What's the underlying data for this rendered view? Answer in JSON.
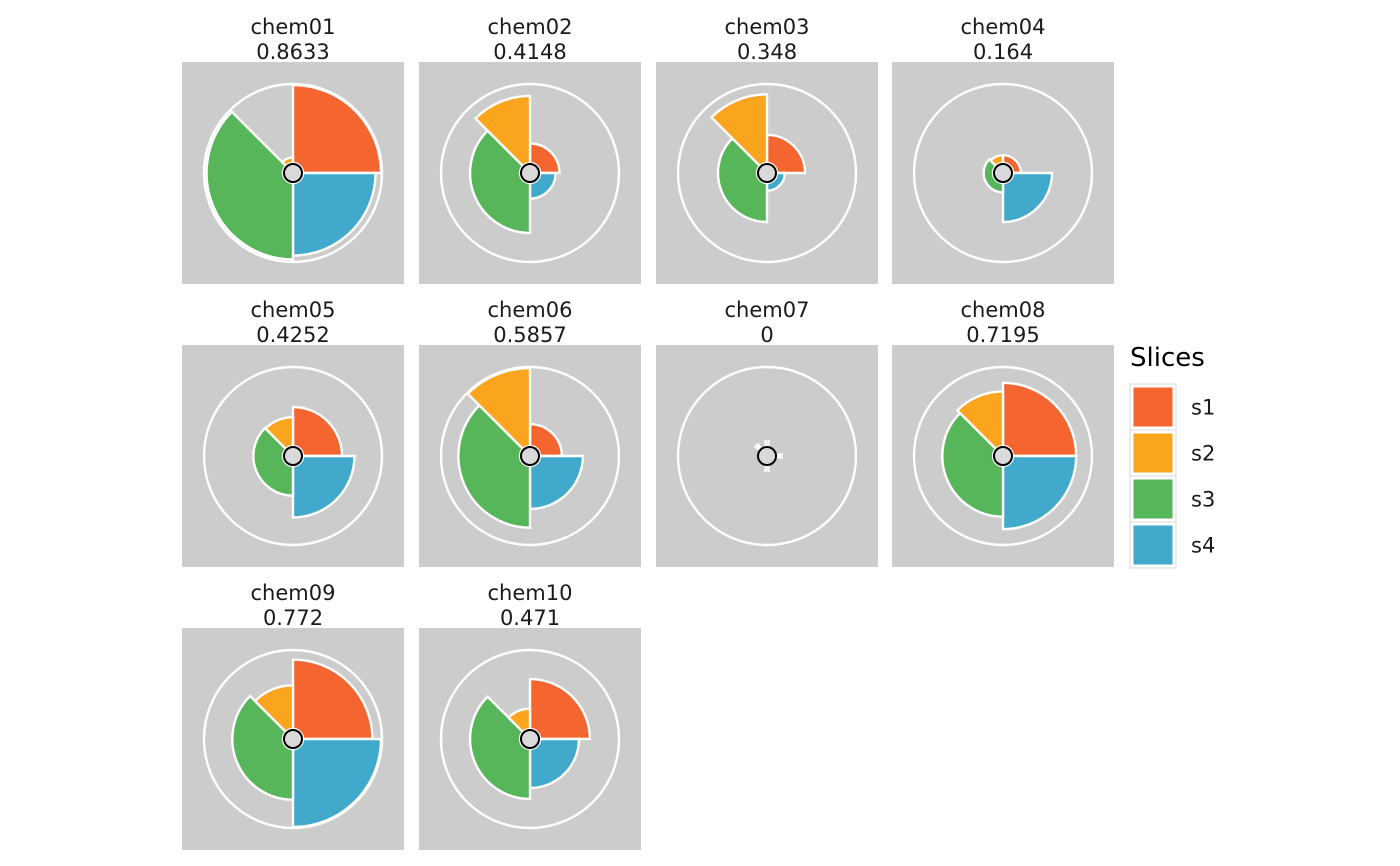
{
  "chart_data": {
    "type": "pie",
    "subtype": "toxpi-facets",
    "slice_names": [
      "s1",
      "s2",
      "s3",
      "s4"
    ],
    "colors": {
      "s1": "#F46530",
      "s2": "#FBA51F",
      "s3": "#57B65A",
      "s4": "#41A9CB",
      "panel_background": "#CCCCCC",
      "ring": "#FFFFFF",
      "center_dot": "#D9D9D9"
    },
    "legend": {
      "title": "Slices",
      "entries": [
        "s1",
        "s2",
        "s3",
        "s4"
      ],
      "placement": "right"
    },
    "panels": [
      {
        "name": "chem01",
        "score": "0.8633",
        "values": {
          "s1": 1.0,
          "s2": 0.07,
          "s3": 0.98,
          "s4": 0.93
        }
      },
      {
        "name": "chem02",
        "score": "0.4148",
        "values": {
          "s1": 0.25,
          "s2": 0.86,
          "s3": 0.64,
          "s4": 0.2
        }
      },
      {
        "name": "chem03",
        "score": "0.348",
        "values": {
          "s1": 0.36,
          "s2": 0.88,
          "s3": 0.5,
          "s4": 0.1
        }
      },
      {
        "name": "chem04",
        "score": "0.164",
        "values": {
          "s1": 0.1,
          "s2": 0.1,
          "s3": 0.12,
          "s4": 0.5
        }
      },
      {
        "name": "chem05",
        "score": "0.4252",
        "values": {
          "s1": 0.5,
          "s2": 0.37,
          "s3": 0.38,
          "s4": 0.66
        }
      },
      {
        "name": "chem06",
        "score": "0.5857",
        "values": {
          "s1": 0.28,
          "s2": 1.0,
          "s3": 0.79,
          "s4": 0.55
        }
      },
      {
        "name": "chem07",
        "score": "0",
        "values": {
          "s1": 0.0,
          "s2": 0.0,
          "s3": 0.0,
          "s4": 0.0
        }
      },
      {
        "name": "chem08",
        "score": "0.7195",
        "values": {
          "s1": 0.81,
          "s2": 0.7,
          "s3": 0.65,
          "s4": 0.81
        }
      },
      {
        "name": "chem09",
        "score": "0.772",
        "values": {
          "s1": 0.89,
          "s2": 0.56,
          "s3": 0.65,
          "s4": 1.0
        }
      },
      {
        "name": "chem10",
        "score": "0.471",
        "values": {
          "s1": 0.64,
          "s2": 0.26,
          "s3": 0.64,
          "s4": 0.5
        }
      }
    ]
  }
}
